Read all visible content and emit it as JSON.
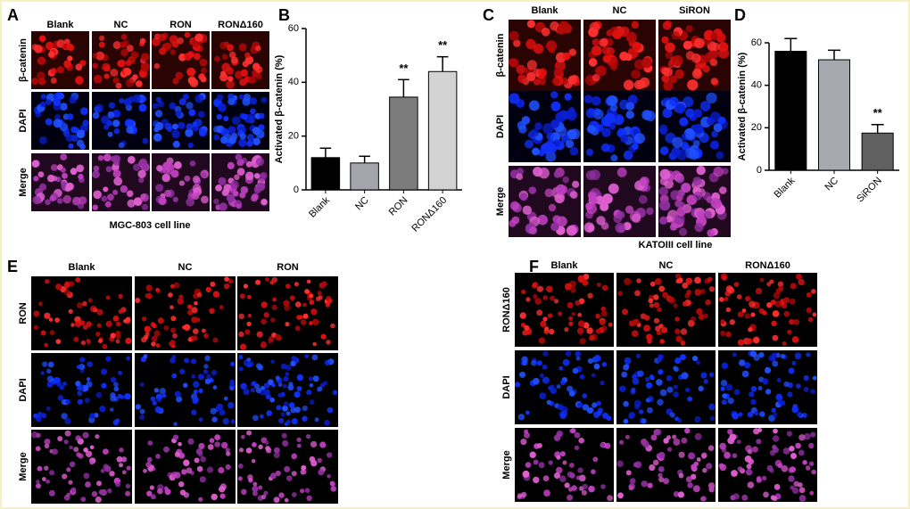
{
  "panels": {
    "A": {
      "label": "A",
      "columns": [
        "Blank",
        "NC",
        "RON",
        "RONΔ160"
      ],
      "rows": [
        "β-catenin",
        "DAPI",
        "Merge"
      ],
      "caption": "MGC-803 cell line"
    },
    "C": {
      "label": "C",
      "columns": [
        "Blank",
        "NC",
        "SiRON"
      ],
      "rows": [
        "β-catenin",
        "DAPI",
        "Merge"
      ],
      "caption": "KATOIII cell line"
    },
    "E": {
      "label": "E",
      "columns": [
        "Blank",
        "NC",
        "RON"
      ],
      "rows": [
        "RON",
        "DAPI",
        "Merge"
      ]
    },
    "F": {
      "label": "F",
      "columns": [
        "Blank",
        "NC",
        "RONΔ160"
      ],
      "rows": [
        "RONΔ160",
        "DAPI",
        "Merge"
      ]
    }
  },
  "chart_data": [
    {
      "type": "bar",
      "label": "B",
      "ylabel": "Activated β-catenin (%)",
      "categories": [
        "Blank",
        "NC",
        "RON",
        "RONΔ160"
      ],
      "values": [
        12,
        10,
        34.5,
        44
      ],
      "errors": [
        3.5,
        2.5,
        6.5,
        5.5
      ],
      "colors": [
        "#000000",
        "#a4a4ac",
        "#7c7c7c",
        "#d2d2d2"
      ],
      "annotations": [
        null,
        null,
        "**",
        "**"
      ],
      "ylim": [
        0,
        60
      ],
      "yticks": [
        0,
        20,
        40,
        60
      ]
    },
    {
      "type": "bar",
      "label": "D",
      "ylabel": "Activated β-catenin (%)",
      "categories": [
        "Blank",
        "NC",
        "SiRON"
      ],
      "values": [
        56,
        52,
        17.5
      ],
      "errors": [
        6,
        4.5,
        4
      ],
      "colors": [
        "#000000",
        "#a8a8b0",
        "#606060"
      ],
      "annotations": [
        null,
        null,
        "**"
      ],
      "ylim": [
        0,
        60
      ],
      "yticks": [
        0,
        20,
        40,
        60
      ]
    }
  ]
}
